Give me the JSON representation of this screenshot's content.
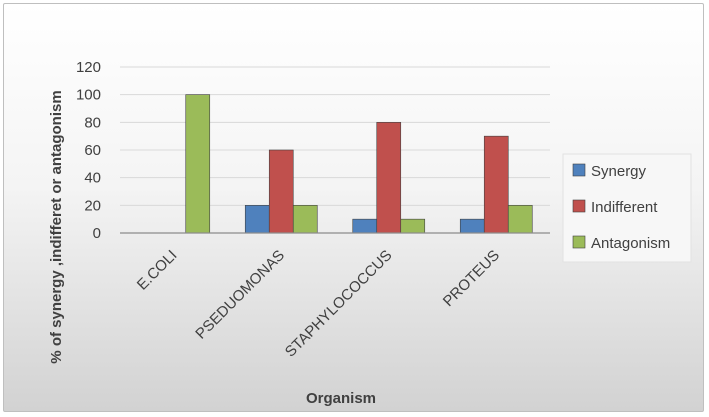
{
  "chart_data": {
    "type": "bar",
    "categories": [
      "E.COLI",
      "PSEDUOMONAS",
      "STAPHYLOCOCCUS",
      "PROTEUS"
    ],
    "series": [
      {
        "name": "Synergy",
        "values": [
          0,
          20,
          10,
          10
        ],
        "color": "#4f81bd"
      },
      {
        "name": "Indifferent",
        "values": [
          0,
          60,
          80,
          70
        ],
        "color": "#c0504d"
      },
      {
        "name": "Antagonism",
        "values": [
          100,
          20,
          10,
          20
        ],
        "color": "#9bbb59"
      }
    ],
    "title": "",
    "xlabel": "Organism",
    "ylabel": "% of synergy ,indifferet or antagonism",
    "ylim": [
      0,
      120
    ],
    "yticks": [
      0,
      20,
      40,
      60,
      80,
      100,
      120
    ],
    "grid": true,
    "legend_position": "right"
  }
}
